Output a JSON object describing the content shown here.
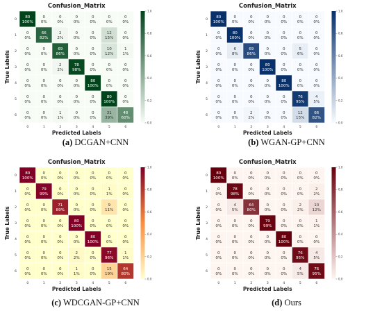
{
  "chart_data": [
    {
      "type": "heatmap",
      "title": "Confusion_Matrix",
      "xlabel": "Predicted Labels",
      "ylabel": "True Labels",
      "caption_label": "(a)",
      "caption_text": "DCGAN+CNN",
      "x_tick_labels": [
        "0",
        "1",
        "2",
        "3",
        "4",
        "5",
        "6"
      ],
      "y_tick_labels": [
        "0",
        "1",
        "2",
        "3",
        "4",
        "5",
        "6"
      ],
      "colorbar_ticks": [
        "0.0",
        "0.2",
        "0.4",
        "0.6",
        "0.8",
        "1.0"
      ],
      "colormap": "Greens",
      "colors": {
        "light": "#f7fcf5",
        "dark": "#00441b"
      },
      "counts": [
        [
          80,
          0,
          0,
          0,
          0,
          0,
          0
        ],
        [
          0,
          66,
          2,
          0,
          0,
          12,
          0
        ],
        [
          0,
          0,
          69,
          0,
          0,
          10,
          1
        ],
        [
          0,
          0,
          2,
          78,
          0,
          0,
          0
        ],
        [
          0,
          0,
          0,
          0,
          80,
          0,
          0
        ],
        [
          0,
          0,
          0,
          0,
          0,
          80,
          0
        ],
        [
          0,
          0,
          1,
          0,
          0,
          31,
          48
        ]
      ],
      "percents": [
        [
          "100%",
          "0%",
          "0%",
          "0%",
          "0%",
          "0%",
          "0%"
        ],
        [
          "0%",
          "82%",
          "2%",
          "0%",
          "0%",
          "15%",
          "0%"
        ],
        [
          "0%",
          "0%",
          "86%",
          "0%",
          "0%",
          "12%",
          "1%"
        ],
        [
          "0%",
          "0%",
          "2%",
          "98%",
          "0%",
          "0%",
          "0%"
        ],
        [
          "0%",
          "0%",
          "0%",
          "0%",
          "100%",
          "0%",
          "0%"
        ],
        [
          "0%",
          "0%",
          "0%",
          "0%",
          "0%",
          "100%",
          "0%"
        ],
        [
          "0%",
          "0%",
          "1%",
          "0%",
          "0%",
          "39%",
          "60%"
        ]
      ]
    },
    {
      "type": "heatmap",
      "title": "Confusion_Matrix",
      "xlabel": "Predicted Labels",
      "ylabel": "True Labels",
      "caption_label": "(b)",
      "caption_text": "WGAN-GP+CNN",
      "x_tick_labels": [
        "0",
        "1",
        "2",
        "3",
        "4",
        "5",
        "6"
      ],
      "y_tick_labels": [
        "0",
        "1",
        "2",
        "3",
        "4",
        "5",
        "6"
      ],
      "colorbar_ticks": [
        "0.0",
        "0.2",
        "0.4",
        "0.6",
        "0.8",
        "1.0"
      ],
      "colormap": "Blues",
      "colors": {
        "light": "#f7fbff",
        "dark": "#08306b"
      },
      "counts": [
        [
          80,
          0,
          0,
          0,
          0,
          0,
          0
        ],
        [
          0,
          80,
          0,
          0,
          0,
          0,
          0
        ],
        [
          0,
          6,
          69,
          0,
          0,
          5,
          0
        ],
        [
          0,
          0,
          0,
          80,
          0,
          0,
          0
        ],
        [
          0,
          0,
          0,
          0,
          80,
          0,
          0
        ],
        [
          0,
          0,
          0,
          0,
          0,
          76,
          4
        ],
        [
          0,
          0,
          2,
          0,
          0,
          12,
          66
        ]
      ],
      "percents": [
        [
          "100%",
          "0%",
          "0%",
          "0%",
          "0%",
          "0%",
          "0%"
        ],
        [
          "0%",
          "100%",
          "0%",
          "0%",
          "0%",
          "0%",
          "0%"
        ],
        [
          "0%",
          "8%",
          "86%",
          "0%",
          "0%",
          "6%",
          "0%"
        ],
        [
          "0%",
          "0%",
          "0%",
          "100%",
          "0%",
          "0%",
          "0%"
        ],
        [
          "0%",
          "0%",
          "0%",
          "0%",
          "100%",
          "0%",
          "0%"
        ],
        [
          "0%",
          "0%",
          "0%",
          "0%",
          "0%",
          "95%",
          "5%"
        ],
        [
          "0%",
          "0%",
          "2%",
          "0%",
          "0%",
          "15%",
          "82%"
        ]
      ]
    },
    {
      "type": "heatmap",
      "title": "Confusion_Matrix",
      "xlabel": "Predicted Labels",
      "ylabel": "True Labels",
      "caption_label": "(c)",
      "caption_text": "WDCGAN-GP+CNN",
      "x_tick_labels": [
        "0",
        "1",
        "2",
        "3",
        "4",
        "5",
        "6"
      ],
      "y_tick_labels": [
        "0",
        "1",
        "2",
        "3",
        "4",
        "5",
        "6"
      ],
      "colorbar_ticks": [
        "0.0",
        "0.2",
        "0.4",
        "0.6",
        "0.8",
        "1.0"
      ],
      "colormap": "YlOrRd",
      "colors": {
        "light": "#ffffcc",
        "mid": "#fd8d3c",
        "dark": "#800026"
      },
      "counts": [
        [
          80,
          0,
          0,
          0,
          0,
          0,
          0
        ],
        [
          0,
          79,
          0,
          0,
          0,
          1,
          0
        ],
        [
          0,
          0,
          71,
          0,
          0,
          9,
          0
        ],
        [
          0,
          0,
          0,
          80,
          0,
          0,
          0
        ],
        [
          0,
          0,
          0,
          0,
          80,
          0,
          0
        ],
        [
          0,
          0,
          0,
          2,
          0,
          77,
          1
        ],
        [
          0,
          0,
          0,
          1,
          0,
          15,
          64
        ]
      ],
      "percents": [
        [
          "100%",
          "0%",
          "0%",
          "0%",
          "0%",
          "0%",
          "0%"
        ],
        [
          "0%",
          "99%",
          "0%",
          "0%",
          "0%",
          "1%",
          "0%"
        ],
        [
          "0%",
          "0%",
          "89%",
          "0%",
          "0%",
          "11%",
          "0%"
        ],
        [
          "0%",
          "0%",
          "0%",
          "100%",
          "0%",
          "0%",
          "0%"
        ],
        [
          "0%",
          "0%",
          "0%",
          "0%",
          "100%",
          "0%",
          "0%"
        ],
        [
          "0%",
          "0%",
          "0%",
          "2%",
          "0%",
          "96%",
          "1%"
        ],
        [
          "0%",
          "0%",
          "0%",
          "1%",
          "0%",
          "19%",
          "80%"
        ]
      ]
    },
    {
      "type": "heatmap",
      "title": "Confusion_Matrix",
      "xlabel": "Predicted Labels",
      "ylabel": "True Labels",
      "caption_label": "(d)",
      "caption_text": "Ours",
      "x_tick_labels": [
        "0",
        "1",
        "2",
        "3",
        "4",
        "5",
        "6"
      ],
      "y_tick_labels": [
        "0",
        "1",
        "2",
        "3",
        "4",
        "5",
        "6"
      ],
      "colorbar_ticks": [
        "0.0",
        "0.2",
        "0.4",
        "0.6",
        "0.8",
        "1.0"
      ],
      "colormap": "Reds",
      "colors": {
        "light": "#fff5f0",
        "dark": "#67000d"
      },
      "counts": [
        [
          80,
          0,
          0,
          0,
          0,
          0,
          0
        ],
        [
          0,
          78,
          0,
          0,
          0,
          0,
          2
        ],
        [
          0,
          4,
          64,
          0,
          0,
          2,
          10
        ],
        [
          0,
          0,
          0,
          79,
          0,
          0,
          1
        ],
        [
          0,
          0,
          0,
          0,
          80,
          0,
          0
        ],
        [
          0,
          0,
          0,
          0,
          0,
          76,
          4
        ],
        [
          0,
          0,
          0,
          0,
          0,
          4,
          76
        ]
      ],
      "percents": [
        [
          "100%",
          "0%",
          "0%",
          "0%",
          "0%",
          "0%",
          "0%"
        ],
        [
          "0%",
          "98%",
          "0%",
          "0%",
          "0%",
          "0%",
          "2%"
        ],
        [
          "0%",
          "5%",
          "80%",
          "0%",
          "0%",
          "2%",
          "12%"
        ],
        [
          "0%",
          "0%",
          "0%",
          "99%",
          "0%",
          "0%",
          "1%"
        ],
        [
          "0%",
          "0%",
          "0%",
          "0%",
          "100%",
          "0%",
          "0%"
        ],
        [
          "0%",
          "0%",
          "0%",
          "0%",
          "0%",
          "95%",
          "5%"
        ],
        [
          "0%",
          "0%",
          "0%",
          "0%",
          "0%",
          "5%",
          "95%"
        ]
      ]
    }
  ]
}
